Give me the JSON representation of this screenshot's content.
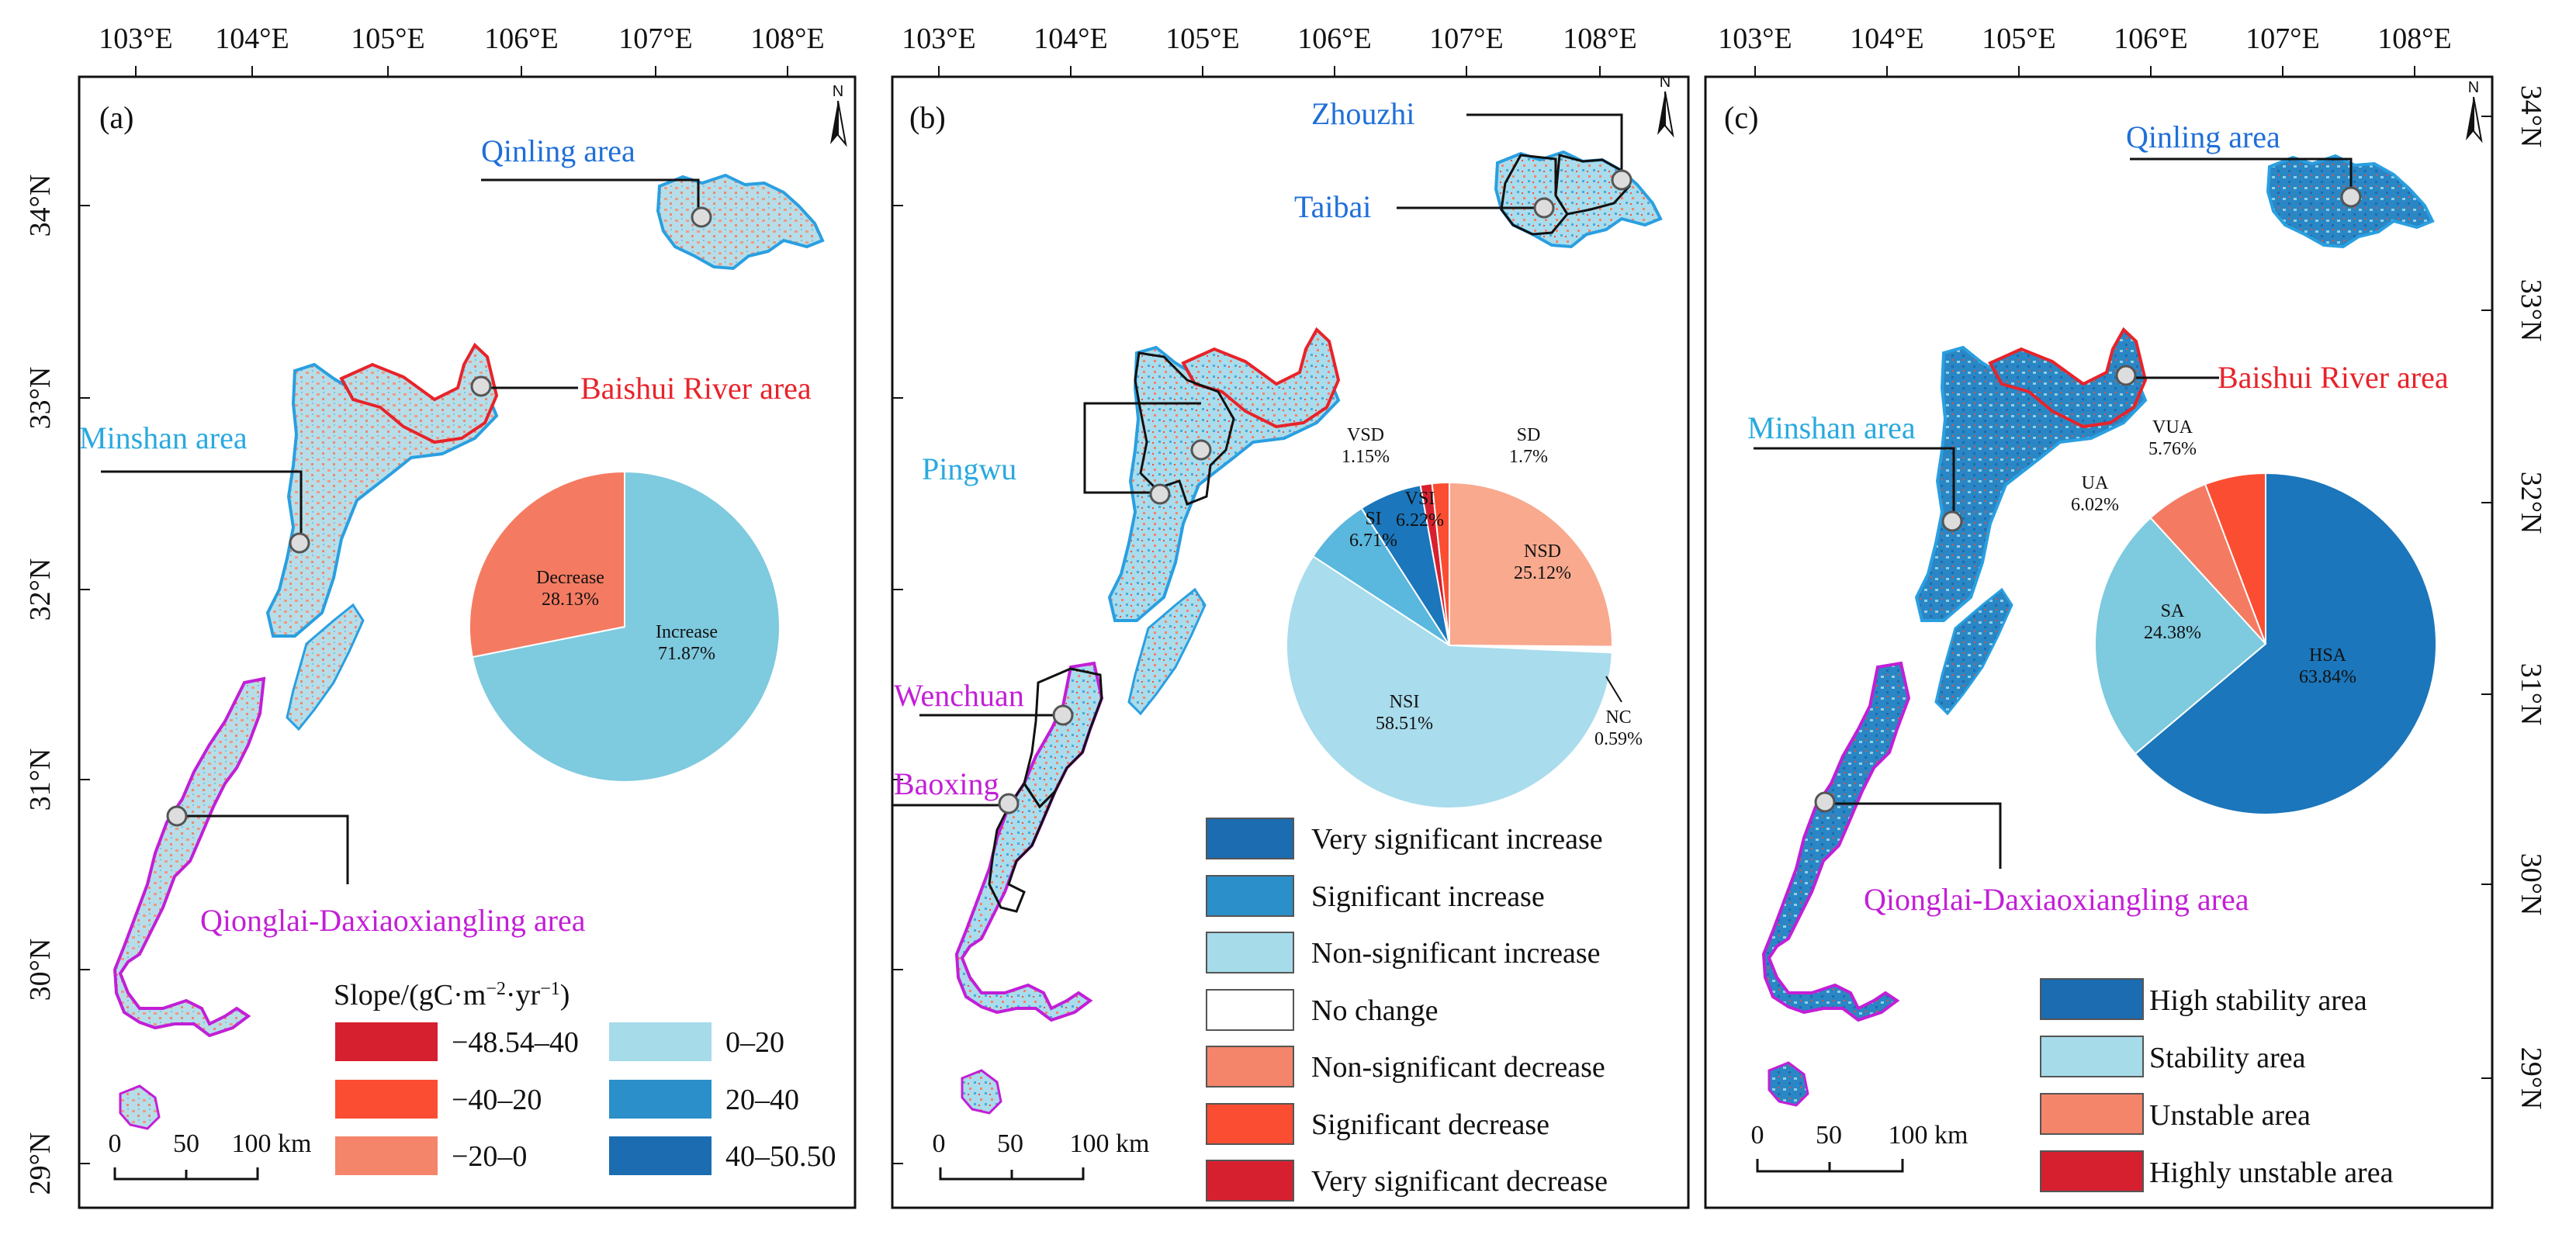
{
  "colors": {
    "blue_label": "#1f6fd8",
    "cyan_label": "#29a9df",
    "red_label": "#e8232a",
    "magenta_label": "#c21fd6",
    "increase": "#7ecadf",
    "decrease": "#f47b62",
    "outline_blue": "#2a9fe0",
    "outline_red": "#e8232a",
    "outline_magenta": "#c21fd6",
    "outline_black": "#111111"
  },
  "axes": {
    "lon_ticks": [
      "103°E",
      "104°E",
      "105°E",
      "106°E",
      "107°E",
      "108°E"
    ],
    "lat_ticks": [
      "34°N",
      "33°N",
      "32°N",
      "31°N",
      "30°N",
      "29°N"
    ]
  },
  "scale_bar": {
    "labels": [
      "0",
      "50",
      "100 km"
    ]
  },
  "north_arrow": {
    "letter": "N"
  },
  "panels": [
    {
      "id": "a",
      "label": "(a)",
      "areas": [
        "Qinling area",
        "Baishui River area",
        "Minshan area",
        "Qionglai-Daxiaoxiangling area"
      ],
      "pie": {
        "slices": [
          {
            "name": "Increase",
            "value": "71.87%",
            "percent": 71.87,
            "color": "#7ecadf"
          },
          {
            "name": "Decrease",
            "value": "28.13%",
            "percent": 28.13,
            "color": "#f47b62"
          }
        ]
      },
      "legend": {
        "title_prefix": "Slope/(gC·m",
        "title_exp1": "−2",
        "title_mid": "·yr",
        "title_exp2": "−1",
        "title_suffix": ")",
        "items": [
          {
            "label": "−48.54–40",
            "color": "#d7202f"
          },
          {
            "label": "−40–20",
            "color": "#fb4d32"
          },
          {
            "label": "−20–0",
            "color": "#f4856a"
          },
          {
            "label": "0–20",
            "color": "#a6dbea"
          },
          {
            "label": "20–40",
            "color": "#2b8fc9"
          },
          {
            "label": "40–50.50",
            "color": "#1b6cb0"
          }
        ]
      }
    },
    {
      "id": "b",
      "label": "(b)",
      "areas": [
        "Zhouzhi",
        "Taibai",
        "Pingwu",
        "Wenchuan",
        "Baoxing"
      ],
      "pie": {
        "slices": [
          {
            "name": "NSI",
            "value": "58.51%",
            "percent": 58.51,
            "color": "#a9dcec"
          },
          {
            "name": "SI",
            "value": "6.71%",
            "percent": 6.71,
            "color": "#5ab7de"
          },
          {
            "name": "VSI",
            "value": "6.22%",
            "percent": 6.22,
            "color": "#1b76bb"
          },
          {
            "name": "VSD",
            "value": "1.15%",
            "percent": 1.15,
            "color": "#d7202f"
          },
          {
            "name": "SD",
            "value": "1.7%",
            "percent": 1.7,
            "color": "#fb4d32"
          },
          {
            "name": "NSD",
            "value": "25.12%",
            "percent": 25.12,
            "color": "#f8a98e"
          },
          {
            "name": "NC",
            "value": "0.59%",
            "percent": 0.59,
            "color": "#ffffff"
          }
        ]
      },
      "legend": {
        "items": [
          {
            "label": "Very significant increase",
            "color": "#1b6cb0"
          },
          {
            "label": "Significant increase",
            "color": "#2b8fc9"
          },
          {
            "label": "Non-significant increase",
            "color": "#a6dbea"
          },
          {
            "label": "No change",
            "color": "#ffffff"
          },
          {
            "label": "Non-significant decrease",
            "color": "#f4856a"
          },
          {
            "label": "Significant decrease",
            "color": "#fb4d32"
          },
          {
            "label": "Very significant decrease",
            "color": "#d7202f"
          }
        ]
      }
    },
    {
      "id": "c",
      "label": "(c)",
      "areas": [
        "Qinling area",
        "Baishui River area",
        "Minshan area",
        "Qionglai-Daxiaoxiangling area"
      ],
      "pie": {
        "slices": [
          {
            "name": "HSA",
            "value": "63.84%",
            "percent": 63.84,
            "color": "#1b76bb"
          },
          {
            "name": "SA",
            "value": "24.38%",
            "percent": 24.38,
            "color": "#7ecadf"
          },
          {
            "name": "UA",
            "value": "6.02%",
            "percent": 6.02,
            "color": "#f47b62"
          },
          {
            "name": "VUA",
            "value": "5.76%",
            "percent": 5.76,
            "color": "#fb4d32"
          }
        ]
      },
      "legend": {
        "items": [
          {
            "label": "High stability area",
            "color": "#1b6cb0"
          },
          {
            "label": "Stability area",
            "color": "#a6dbea"
          },
          {
            "label": "Unstable area",
            "color": "#f4856a"
          },
          {
            "label": "Highly unstable area",
            "color": "#d7202f"
          }
        ]
      }
    }
  ]
}
